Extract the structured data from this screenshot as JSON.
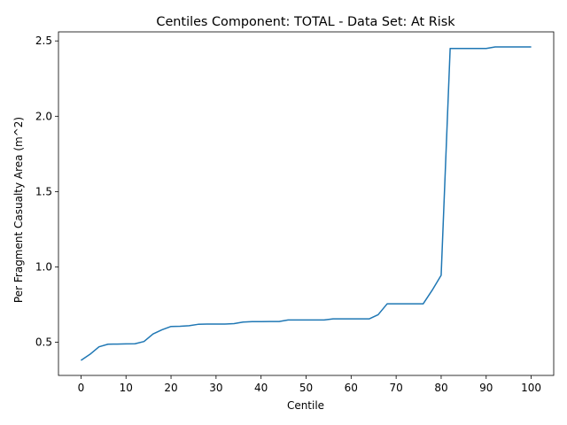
{
  "chart_data": {
    "type": "line",
    "title": "Centiles Component: TOTAL - Data Set: At Risk",
    "xlabel": "Centile",
    "ylabel": "Per Fragment Casualty Area (m^2)",
    "xlim": [
      -5,
      105
    ],
    "ylim": [
      0.28,
      2.56
    ],
    "xticks": [
      0,
      10,
      20,
      30,
      40,
      50,
      60,
      70,
      80,
      90,
      100
    ],
    "yticks": [
      0.5,
      1.0,
      1.5,
      2.0,
      2.5
    ],
    "xtick_labels": [
      "0",
      "10",
      "20",
      "30",
      "40",
      "50",
      "60",
      "70",
      "80",
      "90",
      "100"
    ],
    "ytick_labels": [
      "0.5",
      "1.0",
      "1.5",
      "2.0",
      "2.5"
    ],
    "grid": false,
    "series": [
      {
        "color": "#1f77b4",
        "x": [
          0,
          2,
          4,
          6,
          8,
          10,
          12,
          14,
          16,
          18,
          20,
          22,
          24,
          26,
          28,
          30,
          32,
          34,
          36,
          38,
          40,
          42,
          44,
          46,
          48,
          50,
          52,
          54,
          56,
          58,
          60,
          62,
          64,
          66,
          68,
          70,
          72,
          74,
          76,
          78,
          80,
          82,
          84,
          86,
          88,
          90,
          92,
          94,
          96,
          98,
          100
        ],
        "y": [
          0.38,
          0.42,
          0.47,
          0.487,
          0.488,
          0.489,
          0.49,
          0.505,
          0.555,
          0.583,
          0.605,
          0.606,
          0.61,
          0.619,
          0.621,
          0.621,
          0.621,
          0.624,
          0.634,
          0.637,
          0.637,
          0.638,
          0.638,
          0.648,
          0.648,
          0.648,
          0.648,
          0.648,
          0.655,
          0.655,
          0.655,
          0.655,
          0.655,
          0.683,
          0.755,
          0.755,
          0.755,
          0.755,
          0.755,
          0.845,
          0.945,
          2.45,
          2.45,
          2.45,
          2.45,
          2.45,
          2.46,
          2.46,
          2.46,
          2.46,
          2.46
        ]
      }
    ]
  }
}
